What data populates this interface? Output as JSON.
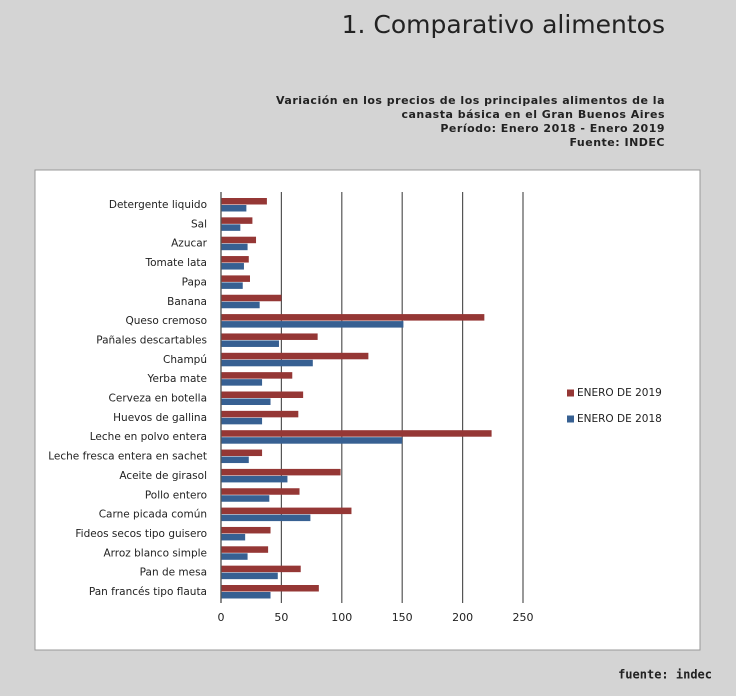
{
  "chart_data": {
    "type": "barh",
    "title": "1. Comparativo alimentos",
    "subtitle": [
      "Variación en los precios de los principales alimentos de la",
      "canasta básica en el Gran Buenos Aires",
      "Período: Enero 2018 - Enero 2019",
      "Fuente: INDEC"
    ],
    "source_note": "fuente: indec",
    "categories": [
      "Detergente liquido",
      "Sal",
      "Azucar",
      "Tomate lata",
      "Papa",
      "Banana",
      "Queso cremoso",
      "Pañales descartables",
      "Champú",
      "Yerba mate",
      "Cerveza en botella",
      "Huevos de gallina",
      "Leche en polvo entera",
      "Leche fresca entera en sachet",
      "Aceite de girasol",
      "Pollo entero",
      "Carne picada común",
      "Fideos secos tipo guisero",
      "Arroz blanco simple",
      "Pan de mesa",
      "Pan francés tipo flauta"
    ],
    "series": [
      {
        "name": "ENERO DE 2019",
        "color": "#953735",
        "values": [
          38,
          26,
          29,
          23,
          24,
          50,
          218,
          80,
          122,
          59,
          68,
          64,
          224,
          34,
          99,
          65,
          108,
          41,
          39,
          66,
          81
        ]
      },
      {
        "name": "ENERO DE 2018",
        "color": "#376092",
        "values": [
          21,
          16,
          22,
          19,
          18,
          32,
          151,
          48,
          76,
          34,
          41,
          34,
          150,
          23,
          55,
          40,
          74,
          20,
          22,
          47,
          41
        ]
      }
    ],
    "xlim": [
      0,
      250
    ],
    "xticks": [
      0,
      50,
      100,
      150,
      200,
      250
    ],
    "grid": true,
    "legend": "right"
  }
}
